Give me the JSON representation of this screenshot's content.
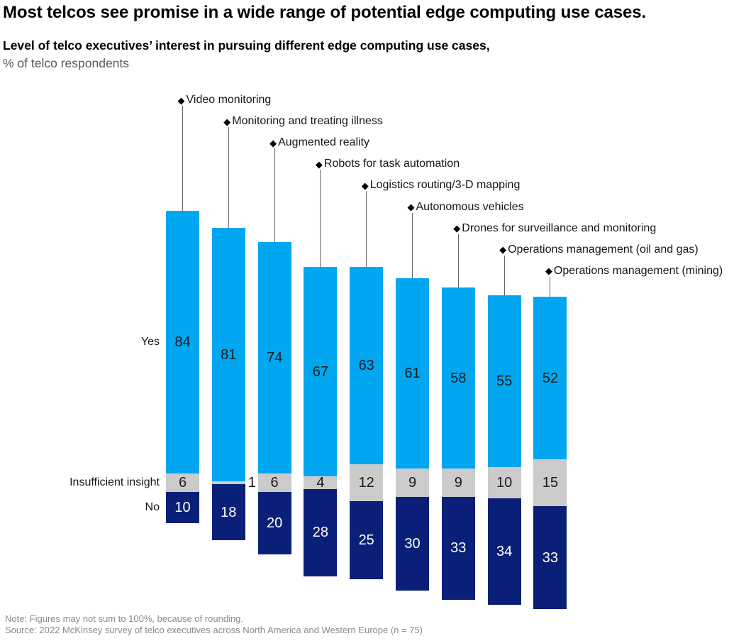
{
  "header": {
    "title": "Most telcos see promise in a wide range of potential edge computing use cases.",
    "subtitle_bold": "Level of telco executives’ interest in pursuing different edge computing use cases,",
    "subtitle_unit": "% of telco respondents"
  },
  "chart_data": {
    "type": "bar",
    "variant": "stacked-columns-center-aligned-on-middle-segment",
    "unit": "% of telco respondents",
    "marker_glyph": "◆",
    "grid": false,
    "legend_position": "left-of-first-column",
    "categories": [
      "Video monitoring",
      "Monitoring and treating illness",
      "Augmented reality",
      "Robots for task automation",
      "Logistics routing/3-D mapping",
      "Autonomous vehicles",
      "Drones for surveillance and monitoring",
      "Operations management (oil and gas)",
      "Operations management (mining)"
    ],
    "series": [
      {
        "name": "Yes",
        "color": "#00A7F0",
        "text_color": "#1C1C1C",
        "values": [
          84,
          81,
          74,
          67,
          63,
          61,
          58,
          55,
          52
        ]
      },
      {
        "name": "Insufficient insight",
        "color": "#CBCBCB",
        "text_color": "#1C1C1C",
        "values": [
          6,
          1,
          6,
          4,
          12,
          9,
          9,
          10,
          15
        ]
      },
      {
        "name": "No",
        "color": "#0A2078",
        "text_color": "#FFFFFF",
        "values": [
          10,
          18,
          20,
          28,
          25,
          30,
          33,
          34,
          33
        ]
      }
    ]
  },
  "footer": {
    "note": "Note: Figures may not sum to 100%, because of rounding.",
    "source": "Source: 2022 McKinsey survey of telco executives across North America and Western Europe (n = 75)"
  },
  "colors": {
    "background": "#FFFFFF",
    "title": "#000000",
    "subtitle_unit": "#595959",
    "category_label": "#161616",
    "connector_line": "#666666",
    "footer_text": "#8A8A8A"
  }
}
